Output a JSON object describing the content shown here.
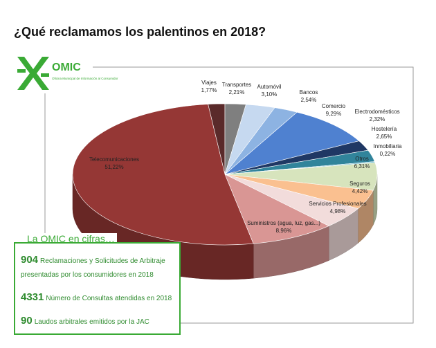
{
  "title": "¿Qué reclamamos los palentinos en 2018?",
  "logo": {
    "name": "OMIC",
    "subtitle": "Oficina Municipal de Información al Consumidor"
  },
  "chart_data": {
    "type": "pie",
    "categories": [
      "Viajes",
      "Transportes",
      "Automóvil",
      "Bancos",
      "Comercio",
      "Electrodomésticos",
      "Hostelería",
      "Inmobiliaria",
      "Otros",
      "Seguros",
      "Servicios Profesionales",
      "Suministros (agua, luz, gas...)",
      "Telecomunicaciones"
    ],
    "values": [
      1.77,
      2.21,
      3.1,
      2.54,
      9.29,
      2.32,
      2.65,
      0.22,
      6.31,
      4.42,
      4.98,
      8.96,
      51.22
    ],
    "value_labels": [
      "1,77%",
      "2,21%",
      "3,10%",
      "2,54%",
      "9,29%",
      "2,32%",
      "2,65%",
      "0,22%",
      "6,31%",
      "4,42%",
      "4,98%",
      "8,96%",
      "51,22%"
    ],
    "colors": [
      "#5a2a2a",
      "#7f7f7f",
      "#c6d9f0",
      "#8db3e2",
      "#4f81d0",
      "#1f3864",
      "#31849b",
      "#4bacc6",
      "#d7e4bd",
      "#fac090",
      "#f2dcdb",
      "#d99694",
      "#953735"
    ]
  },
  "info_box": {
    "heading": "La OMIC en cifras…",
    "items": [
      {
        "number": 904,
        "text": "Reclamaciones y Solicitudes de Arbitraje presentadas por los consumidores en 2018"
      },
      {
        "number": 4331,
        "text": "Número de Consultas atendidas en 2018"
      },
      {
        "number": 90,
        "text": "Laudos arbitrales emitidos por la JAC"
      }
    ]
  }
}
